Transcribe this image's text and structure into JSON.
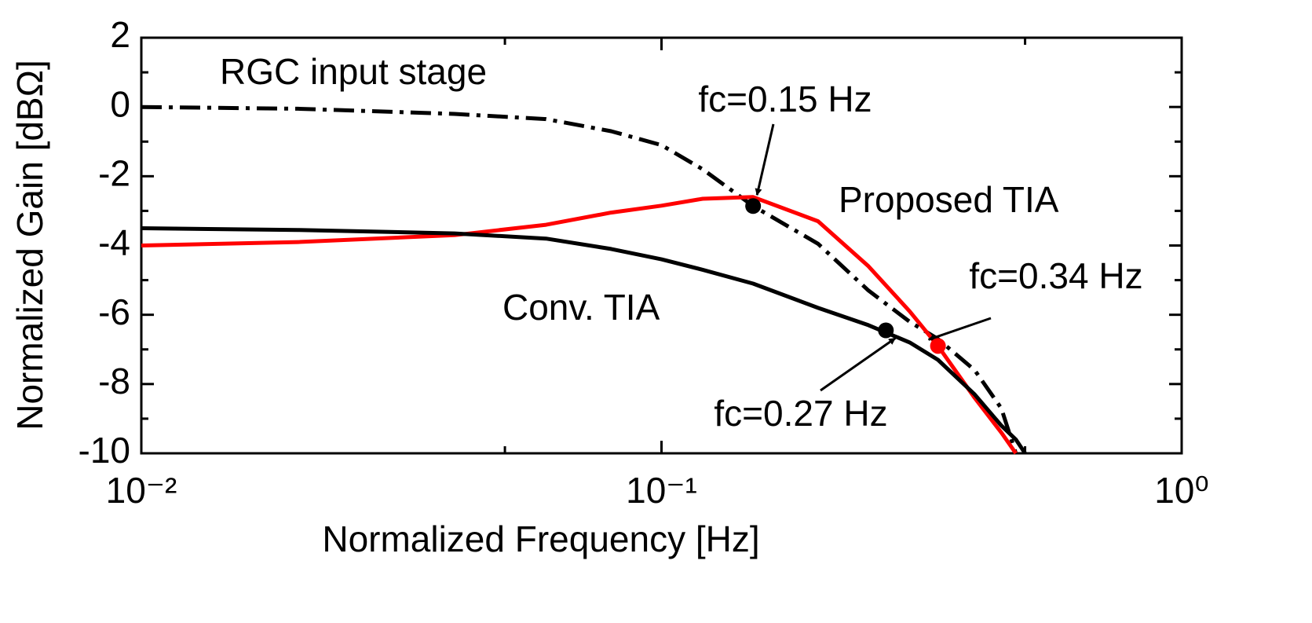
{
  "chart_data": {
    "type": "line",
    "xlabel": "Normalized Frequency [Hz]",
    "ylabel": "Normalized Gain [dBΩ]",
    "xscale": "log",
    "xlim": [
      0.01,
      1
    ],
    "ylim": [
      -10,
      2
    ],
    "xticks": [
      {
        "value": 0.01,
        "label": "10⁻²"
      },
      {
        "value": 0.1,
        "label": "10⁻¹"
      },
      {
        "value": 1,
        "label": "10⁰"
      }
    ],
    "xminorticks": [
      0.05,
      0.5
    ],
    "yticks": [
      -10,
      -8,
      -6,
      -4,
      -2,
      0,
      2
    ],
    "yminorticks": [
      -9,
      -7,
      -5,
      -3,
      -1,
      1
    ],
    "x": [
      0.01,
      0.02,
      0.04,
      0.06,
      0.08,
      0.1,
      0.12,
      0.15,
      0.2,
      0.25,
      0.3,
      0.34,
      0.4,
      0.45,
      0.48,
      0.5
    ],
    "series": [
      {
        "name": "RGC input stage",
        "color": "#000000",
        "style": "dashdot",
        "values": [
          0,
          -0.05,
          -0.2,
          -0.35,
          -0.7,
          -1.1,
          -1.8,
          -2.86,
          -3.95,
          -5.3,
          -6.2,
          -6.7,
          -7.6,
          -8.7,
          -10,
          null
        ]
      },
      {
        "name": "Proposed TIA",
        "color": "#ff0000",
        "style": "solid",
        "values": [
          -4.0,
          -3.9,
          -3.7,
          -3.4,
          -3.05,
          -2.85,
          -2.65,
          -2.6,
          -3.3,
          -4.6,
          -5.9,
          -6.9,
          -8.4,
          -9.4,
          -10,
          null
        ]
      },
      {
        "name": "Conv. TIA",
        "color": "#000000",
        "style": "solid",
        "values": [
          -3.5,
          -3.55,
          -3.65,
          -3.8,
          -4.1,
          -4.4,
          -4.7,
          -5.1,
          -5.8,
          -6.3,
          -6.8,
          -7.3,
          -8.3,
          -9.2,
          -9.6,
          -10
        ]
      }
    ],
    "annotations": [
      {
        "text": "fc=0.15 Hz",
        "x": 0.15,
        "y": -2.86,
        "color": "#000000"
      },
      {
        "text": "fc=0.27 Hz",
        "x": 0.27,
        "y": -6.45,
        "color": "#000000"
      },
      {
        "text": "fc=0.34 Hz",
        "x": 0.34,
        "y": -6.9,
        "color": "#ff0000"
      }
    ]
  }
}
